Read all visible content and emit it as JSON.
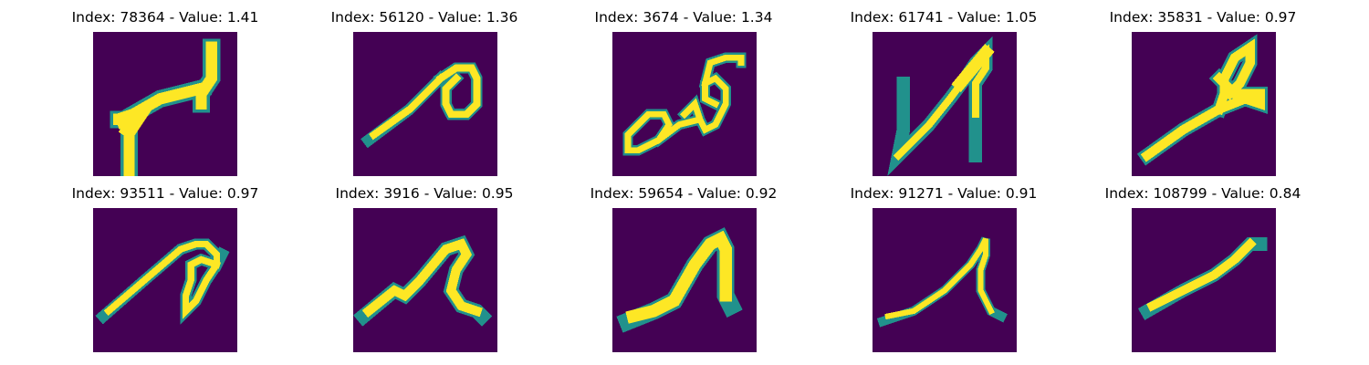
{
  "figure": {
    "background_color": "#440154",
    "stroke_color_main": "#fde725",
    "stroke_color_edge": "#35b779",
    "stroke_color_mid": "#21918c",
    "panels": [
      {
        "index": "78364",
        "value": "1.41",
        "title": "Index: 78364 - Value: 1.41",
        "content": "handwritten character, rising stroke with vertical bar"
      },
      {
        "index": "56120",
        "value": "1.36",
        "title": "Index: 56120 - Value: 1.36",
        "content": "handwritten character, diagonal stroke ending in loop"
      },
      {
        "index": "3674",
        "value": "1.34",
        "title": "Index: 3674 - Value: 1.34",
        "content": "handwritten character, looped scribble"
      },
      {
        "index": "61741",
        "value": "1.05",
        "title": "Index: 61741 - Value: 1.05",
        "content": "handwritten character, N-like zigzag"
      },
      {
        "index": "35831",
        "value": "0.97",
        "title": "Index: 35831 - Value: 0.97",
        "content": "handwritten character, diagonal stroke with upper loop"
      },
      {
        "index": "93511",
        "value": "0.97",
        "title": "Index: 93511 - Value: 0.97",
        "content": "handwritten character, diagonal stroke with lower loop"
      },
      {
        "index": "3916",
        "value": "0.95",
        "title": "Index: 3916 - Value: 0.95",
        "content": "handwritten character, peaked stroke with tail"
      },
      {
        "index": "59654",
        "value": "0.92",
        "title": "Index: 59654 - Value: 0.92",
        "content": "handwritten character, arch stroke"
      },
      {
        "index": "91271",
        "value": "0.91",
        "title": "Index: 91271 - Value: 0.91",
        "content": "handwritten character, thin peaked stroke"
      },
      {
        "index": "108799",
        "value": "0.84",
        "title": "Index: 108799 - Value: 0.84",
        "content": "handwritten character, single diagonal stroke"
      }
    ]
  }
}
